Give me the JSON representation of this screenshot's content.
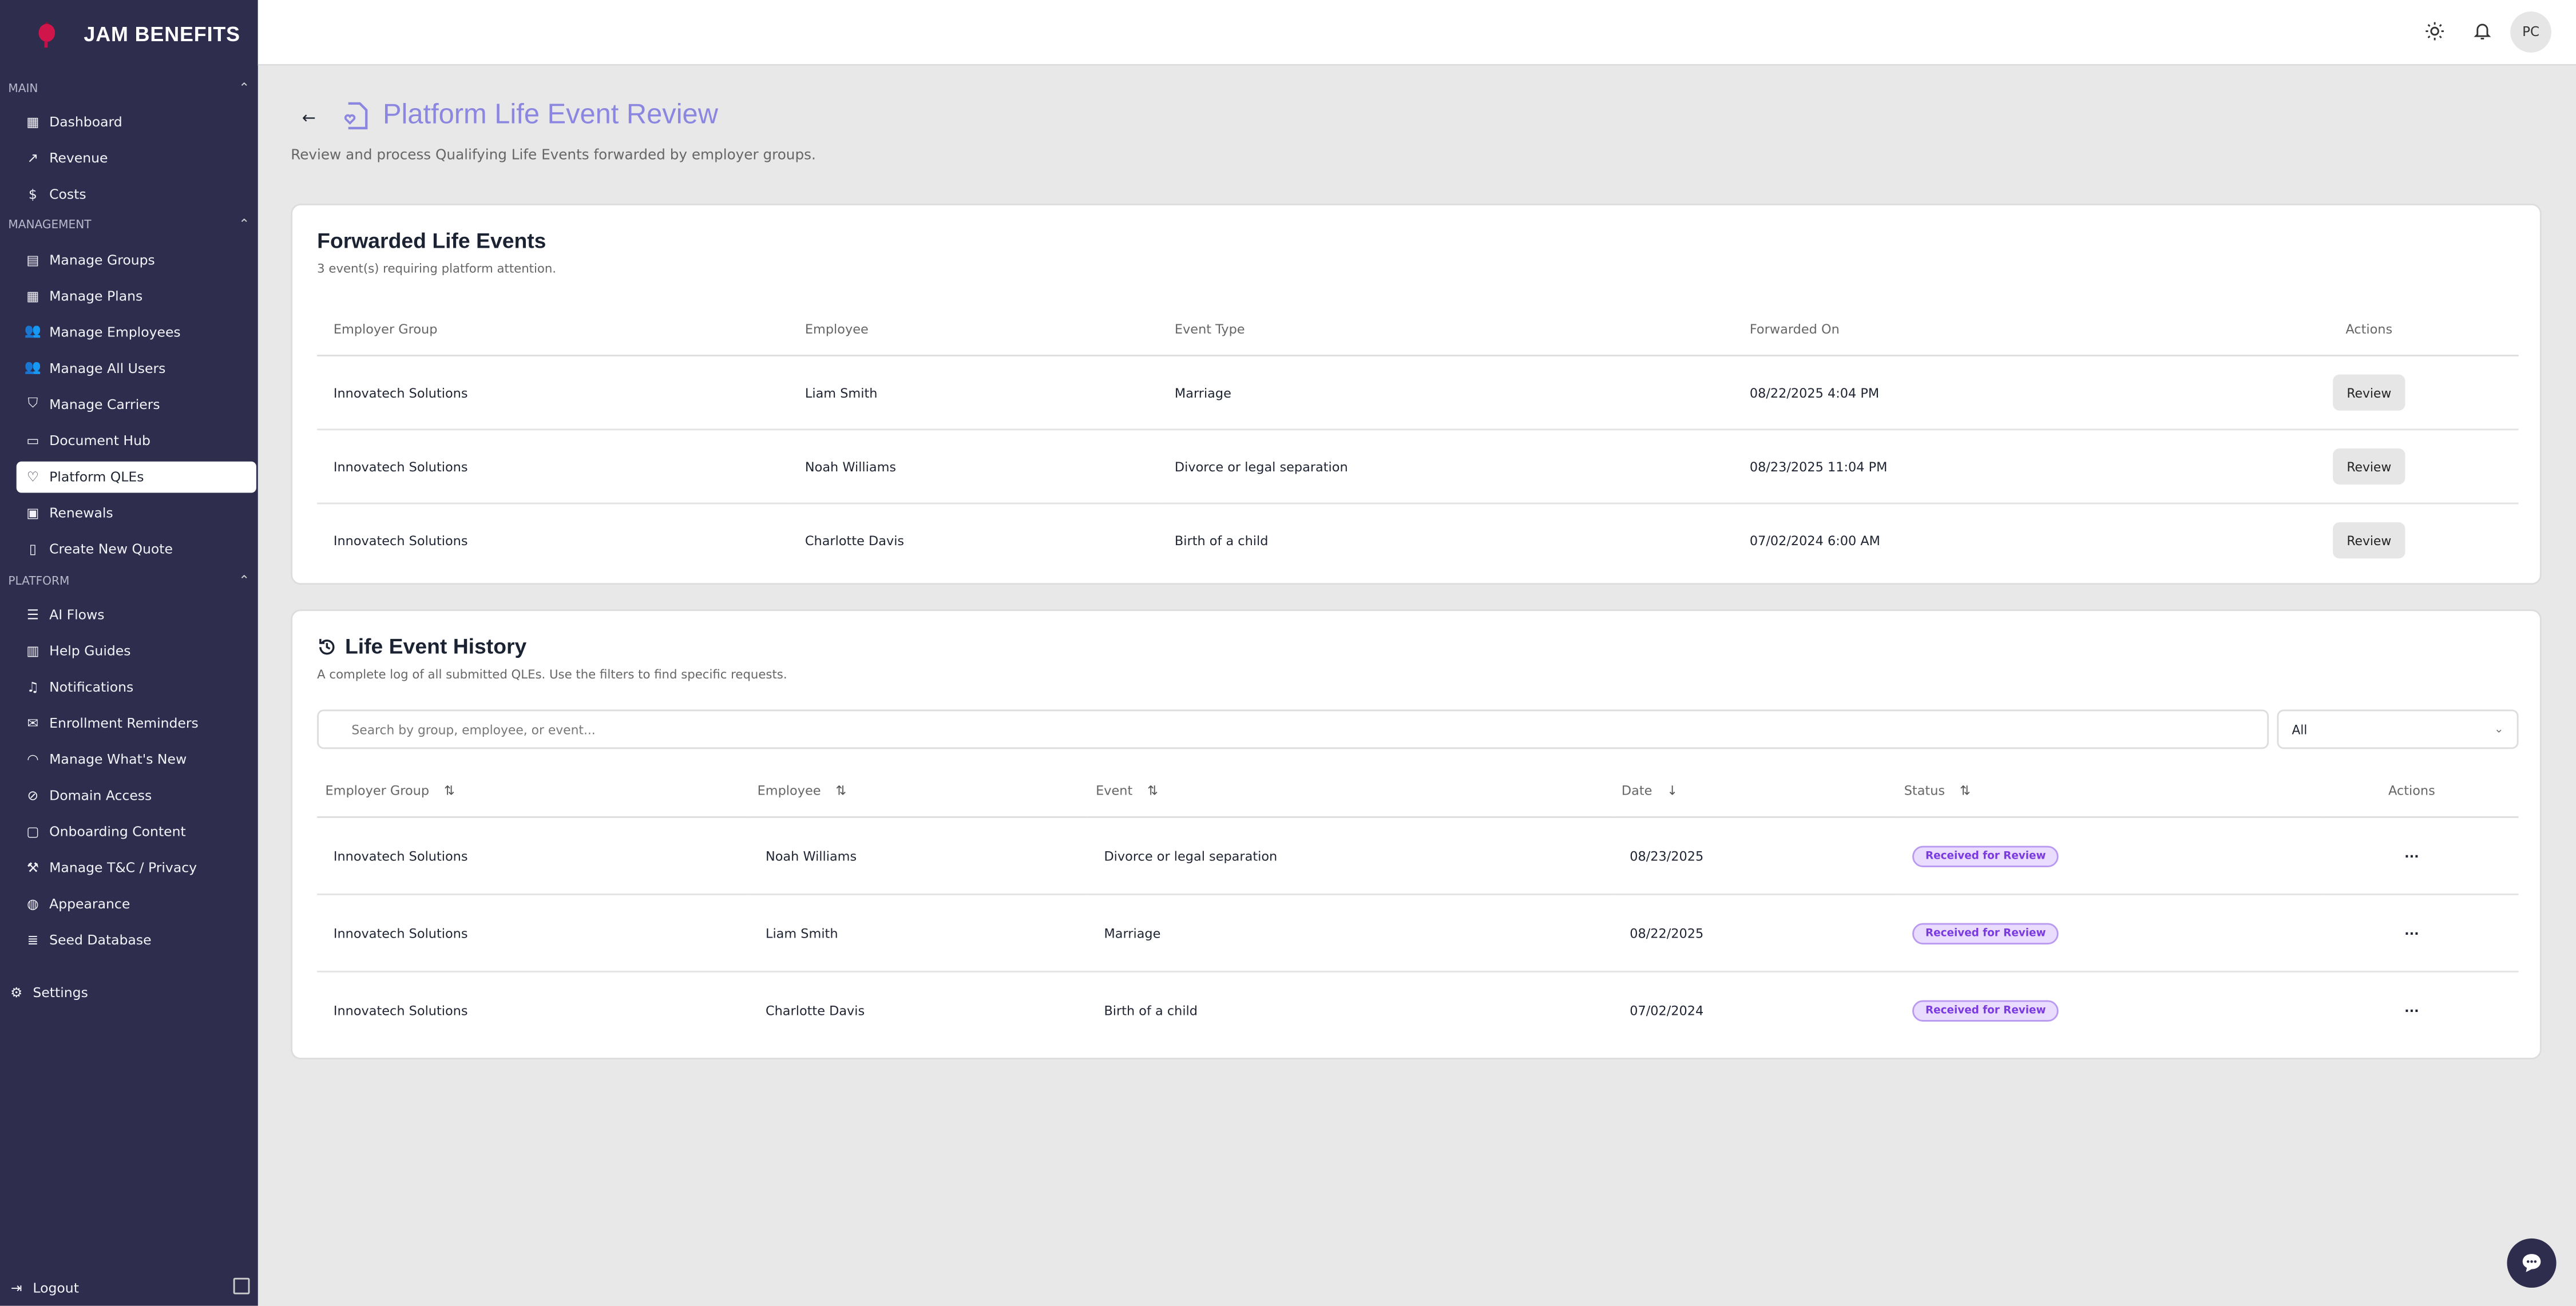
{
  "brand": {
    "name": "JAM BENEFITS"
  },
  "sidebar": {
    "sections": [
      {
        "label": "MAIN",
        "items": [
          {
            "label": "Dashboard",
            "icon": "grid-icon"
          },
          {
            "label": "Revenue",
            "icon": "trending-up-icon"
          },
          {
            "label": "Costs",
            "icon": "dollar-icon"
          }
        ]
      },
      {
        "label": "MANAGEMENT",
        "items": [
          {
            "label": "Manage Groups",
            "icon": "building-icon"
          },
          {
            "label": "Manage Plans",
            "icon": "grid-icon"
          },
          {
            "label": "Manage Employees",
            "icon": "users-icon"
          },
          {
            "label": "Manage All Users",
            "icon": "users-icon"
          },
          {
            "label": "Manage Carriers",
            "icon": "shield-icon"
          },
          {
            "label": "Document Hub",
            "icon": "folder-icon"
          },
          {
            "label": "Platform QLEs",
            "icon": "file-heart-icon",
            "active": true
          },
          {
            "label": "Renewals",
            "icon": "calendar-icon"
          },
          {
            "label": "Create New Quote",
            "icon": "clipboard-icon"
          }
        ]
      },
      {
        "label": "PLATFORM",
        "items": [
          {
            "label": "AI Flows",
            "icon": "sliders-icon"
          },
          {
            "label": "Help Guides",
            "icon": "book-icon"
          },
          {
            "label": "Notifications",
            "icon": "bell-icon"
          },
          {
            "label": "Enrollment Reminders",
            "icon": "mail-icon"
          },
          {
            "label": "Manage What's New",
            "icon": "rss-icon"
          },
          {
            "label": "Domain Access",
            "icon": "ban-icon"
          },
          {
            "label": "Onboarding Content",
            "icon": "message-icon"
          },
          {
            "label": "Manage T&C / Privacy",
            "icon": "gavel-icon"
          },
          {
            "label": "Appearance",
            "icon": "palette-icon"
          },
          {
            "label": "Seed Database",
            "icon": "database-icon"
          }
        ]
      }
    ],
    "settings": "Settings",
    "logout": "Logout"
  },
  "topbar": {
    "avatar": "PC"
  },
  "page": {
    "title": "Platform Life Event Review",
    "subtitle": "Review and process Qualifying Life Events forwarded by employer groups.",
    "accent": "#8b86e0"
  },
  "forwarded": {
    "title": "Forwarded Life Events",
    "subtitle": "3 event(s) requiring platform attention.",
    "columns": [
      "Employer Group",
      "Employee",
      "Event Type",
      "Forwarded On",
      "Actions"
    ],
    "rows": [
      {
        "group": "Innovatech Solutions",
        "employee": "Liam Smith",
        "event": "Marriage",
        "forwarded": "08/22/2025 4:04 PM",
        "action": "Review"
      },
      {
        "group": "Innovatech Solutions",
        "employee": "Noah Williams",
        "event": "Divorce or legal separation",
        "forwarded": "08/23/2025 11:04 PM",
        "action": "Review"
      },
      {
        "group": "Innovatech Solutions",
        "employee": "Charlotte Davis",
        "event": "Birth of a child",
        "forwarded": "07/02/2024 6:00 AM",
        "action": "Review"
      }
    ]
  },
  "history": {
    "title": "Life Event History",
    "subtitle": "A complete log of all submitted QLEs. Use the filters to find specific requests.",
    "search_placeholder": "Search by group, employee, or event...",
    "filter": "All",
    "columns": [
      "Employer Group",
      "Employee",
      "Event",
      "Date",
      "Status",
      "Actions"
    ],
    "rows": [
      {
        "group": "Innovatech Solutions",
        "employee": "Noah Williams",
        "event": "Divorce or legal separation",
        "date": "08/23/2025",
        "status": "Received for Review"
      },
      {
        "group": "Innovatech Solutions",
        "employee": "Liam Smith",
        "event": "Marriage",
        "date": "08/22/2025",
        "status": "Received for Review"
      },
      {
        "group": "Innovatech Solutions",
        "employee": "Charlotte Davis",
        "event": "Birth of a child",
        "date": "07/02/2024",
        "status": "Received for Review"
      }
    ]
  }
}
